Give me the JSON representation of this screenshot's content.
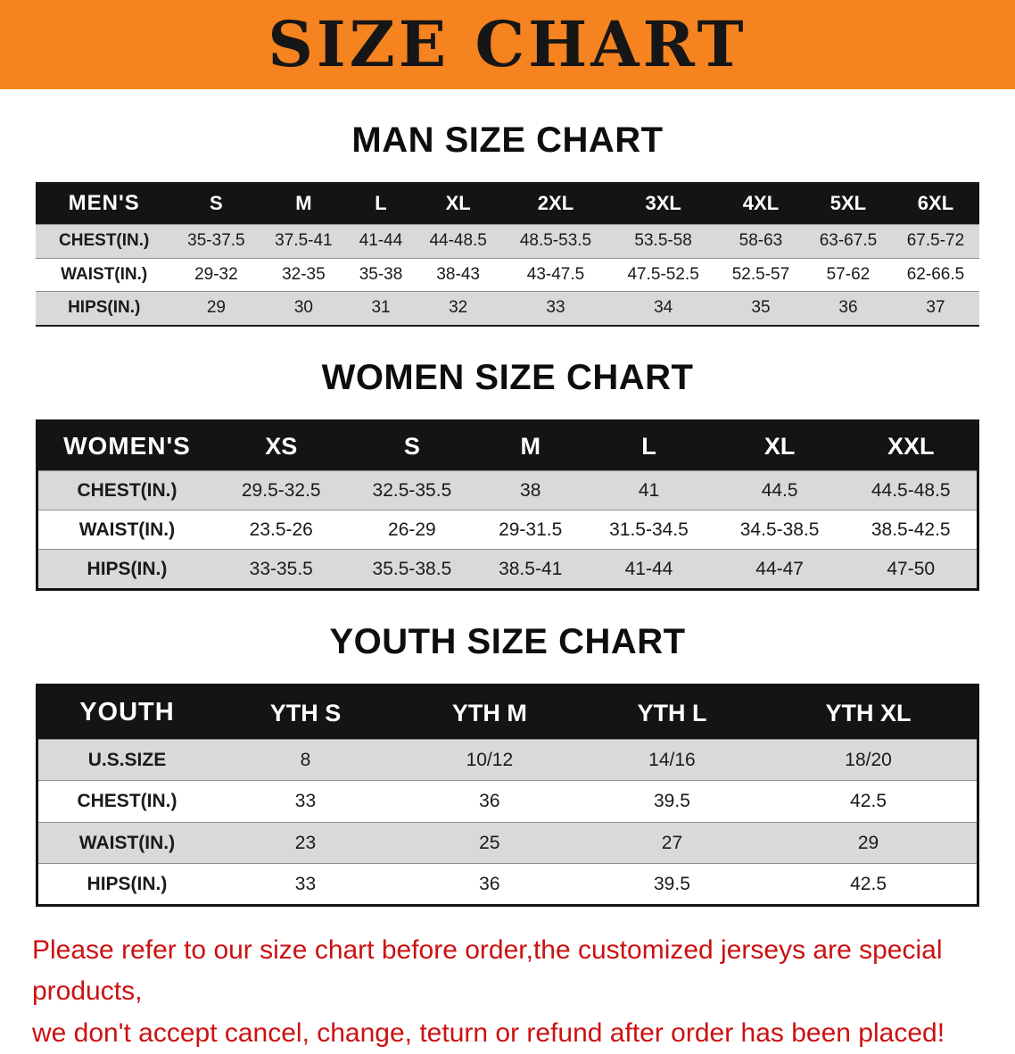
{
  "banner": {
    "title": "SIZE CHART",
    "background_color": "#f5831f",
    "text_color": "#161616"
  },
  "sections": [
    {
      "key": "mens",
      "heading": "MAN SIZE CHART",
      "table": {
        "header": [
          "MEN'S",
          "S",
          "M",
          "L",
          "XL",
          "2XL",
          "3XL",
          "4XL",
          "5XL",
          "6XL"
        ],
        "rows": [
          [
            "CHEST(IN.)",
            "35-37.5",
            "37.5-41",
            "41-44",
            "44-48.5",
            "48.5-53.5",
            "53.5-58",
            "58-63",
            "63-67.5",
            "67.5-72"
          ],
          [
            "WAIST(IN.)",
            "29-32",
            "32-35",
            "35-38",
            "38-43",
            "43-47.5",
            "47.5-52.5",
            "52.5-57",
            "57-62",
            "62-66.5"
          ],
          [
            "HIPS(IN.)",
            "29",
            "30",
            "31",
            "32",
            "33",
            "34",
            "35",
            "36",
            "37"
          ]
        ]
      }
    },
    {
      "key": "womens",
      "heading": "WOMEN SIZE CHART",
      "table": {
        "header": [
          "WOMEN'S",
          "XS",
          "S",
          "M",
          "L",
          "XL",
          "XXL"
        ],
        "rows": [
          [
            "CHEST(IN.)",
            "29.5-32.5",
            "32.5-35.5",
            "38",
            "41",
            "44.5",
            "44.5-48.5"
          ],
          [
            "WAIST(IN.)",
            "23.5-26",
            "26-29",
            "29-31.5",
            "31.5-34.5",
            "34.5-38.5",
            "38.5-42.5"
          ],
          [
            "HIPS(IN.)",
            "33-35.5",
            "35.5-38.5",
            "38.5-41",
            "41-44",
            "44-47",
            "47-50"
          ]
        ]
      }
    },
    {
      "key": "youth",
      "heading": "YOUTH SIZE CHART",
      "table": {
        "header": [
          "YOUTH",
          "YTH S",
          "YTH M",
          "YTH L",
          "YTH XL"
        ],
        "rows": [
          [
            "U.S.SIZE",
            "8",
            "10/12",
            "14/16",
            "18/20"
          ],
          [
            "CHEST(IN.)",
            "33",
            "36",
            "39.5",
            "42.5"
          ],
          [
            "WAIST(IN.)",
            "23",
            "25",
            "27",
            "29"
          ],
          [
            "HIPS(IN.)",
            "33",
            "36",
            "39.5",
            "42.5"
          ]
        ]
      }
    }
  ],
  "footer": {
    "text_color": "#cc1111",
    "lines": [
      "Please refer to our size chart before order,the customized jerseys are special products,",
      "we don't accept cancel, change, teturn or refund after order has been placed!"
    ]
  }
}
